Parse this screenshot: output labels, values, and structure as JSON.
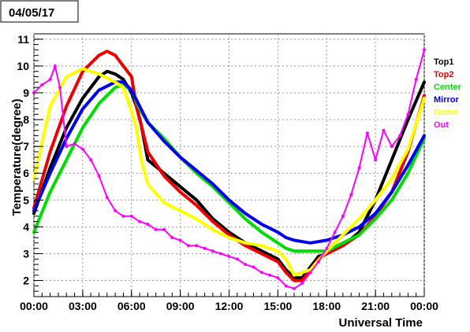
{
  "date_label": "04/05/17",
  "chart_data": {
    "type": "scatter",
    "title": "",
    "xlabel": "Universal Time",
    "ylabel": "Temperature(degree)",
    "xlim": [
      0,
      24
    ],
    "ylim": [
      1.4,
      11.2
    ],
    "x_ticks": [
      0,
      3,
      6,
      9,
      12,
      15,
      18,
      21,
      24
    ],
    "x_tick_labels": [
      "00:00",
      "03:00",
      "06:00",
      "09:00",
      "12:00",
      "15:00",
      "18:00",
      "21:00",
      "00:00"
    ],
    "y_ticks": [
      2,
      3,
      4,
      5,
      6,
      7,
      8,
      9,
      10,
      11
    ],
    "y_tick_labels": [
      "2",
      "3",
      "4",
      "5",
      "6",
      "7",
      "8",
      "9",
      "10",
      "11"
    ],
    "grid": true,
    "legend_position": "right",
    "series": [
      {
        "name": "Top1",
        "color": "#000000",
        "x": [
          0,
          1,
          2,
          3,
          4,
          4.5,
          5,
          5.5,
          6,
          6.3,
          6.6,
          7,
          8,
          9,
          10,
          11,
          12,
          13,
          14,
          15,
          15.5,
          16,
          16.5,
          17,
          17.5,
          18,
          19,
          20,
          21,
          22,
          23,
          24
        ],
        "y": [
          4.5,
          6.2,
          7.7,
          8.8,
          9.6,
          9.8,
          9.7,
          9.5,
          9.0,
          8.5,
          7.8,
          6.5,
          6.0,
          5.5,
          5.0,
          4.3,
          3.8,
          3.4,
          3.1,
          2.8,
          2.4,
          2.1,
          2.1,
          2.5,
          2.9,
          3.0,
          3.3,
          3.8,
          5.0,
          6.5,
          8.0,
          9.4
        ]
      },
      {
        "name": "Top2",
        "color": "#ee0000",
        "x": [
          0,
          1,
          2,
          3,
          4,
          4.5,
          5,
          5.5,
          6,
          6.3,
          6.6,
          7,
          8,
          9,
          10,
          11,
          12,
          13,
          14,
          15,
          15.5,
          16,
          16.5,
          17,
          17.5,
          18,
          19,
          20,
          21,
          22,
          23,
          24
        ],
        "y": [
          4.7,
          6.8,
          8.5,
          9.8,
          10.4,
          10.55,
          10.4,
          10.0,
          9.6,
          8.5,
          7.8,
          6.8,
          5.9,
          5.3,
          4.8,
          4.2,
          3.7,
          3.3,
          3.0,
          2.7,
          2.3,
          2.0,
          2.0,
          2.4,
          2.8,
          3.0,
          3.3,
          3.7,
          4.4,
          5.3,
          6.8,
          8.9
        ]
      },
      {
        "name": "Center",
        "color": "#00dd00",
        "x": [
          0,
          1,
          2,
          3,
          4,
          5,
          5.5,
          6,
          6.5,
          7,
          8,
          9,
          10,
          11,
          12,
          13,
          14,
          15,
          15.5,
          16,
          17,
          18,
          19,
          20,
          21,
          22,
          23,
          24
        ],
        "y": [
          3.8,
          5.3,
          6.5,
          7.7,
          8.6,
          9.2,
          9.3,
          9.1,
          8.4,
          7.9,
          7.3,
          6.6,
          6.0,
          5.5,
          4.9,
          4.3,
          3.8,
          3.4,
          3.2,
          3.1,
          3.1,
          3.1,
          3.4,
          3.7,
          4.3,
          5.0,
          6.0,
          7.3
        ]
      },
      {
        "name": "Mirror",
        "color": "#0000ee",
        "x": [
          0,
          1,
          2,
          3,
          4,
          5,
          5.5,
          6,
          6.5,
          7,
          8,
          9,
          10,
          11,
          12,
          13,
          14,
          15,
          15.5,
          16,
          17,
          18,
          19,
          20,
          21,
          22,
          23,
          24
        ],
        "y": [
          4.6,
          6.0,
          7.3,
          8.4,
          9.1,
          9.4,
          9.4,
          9.1,
          8.5,
          7.9,
          7.2,
          6.6,
          6.1,
          5.6,
          5.0,
          4.5,
          4.1,
          3.8,
          3.6,
          3.5,
          3.4,
          3.5,
          3.7,
          4.0,
          4.5,
          5.3,
          6.3,
          7.4
        ]
      },
      {
        "name": "Dome",
        "color": "#ffff00",
        "x": [
          0,
          1,
          2,
          3,
          4,
          5,
          5.5,
          6,
          6.3,
          6.6,
          7,
          8,
          9,
          10,
          11,
          12,
          13,
          14,
          15,
          15.5,
          16,
          17,
          18,
          19,
          20,
          21,
          22,
          23,
          24
        ],
        "y": [
          5.8,
          8.5,
          9.6,
          9.9,
          9.7,
          9.4,
          9.2,
          8.3,
          7.7,
          6.5,
          5.6,
          4.9,
          4.6,
          4.3,
          3.9,
          3.6,
          3.4,
          3.3,
          3.1,
          2.8,
          2.2,
          2.4,
          3.1,
          3.7,
          4.3,
          5.0,
          5.8,
          6.9,
          8.8
        ]
      },
      {
        "name": "Out",
        "color": "#ff00ff",
        "x": [
          0,
          0.5,
          1,
          1.3,
          1.6,
          2,
          2.5,
          3,
          3.5,
          4,
          4.5,
          5,
          5.5,
          6,
          6.5,
          7,
          7.5,
          8,
          8.5,
          9,
          9.5,
          10,
          10.5,
          11,
          11.5,
          12,
          12.5,
          13,
          13.5,
          14,
          14.5,
          15,
          15.5,
          16,
          16.5,
          17,
          17.5,
          18,
          18.5,
          19,
          19.5,
          20,
          20.5,
          21,
          21.5,
          22,
          22.5,
          23,
          23.5,
          24
        ],
        "y": [
          9.0,
          9.3,
          9.5,
          10.0,
          9.2,
          7.0,
          7.1,
          6.9,
          6.5,
          5.9,
          5.1,
          4.6,
          4.4,
          4.4,
          4.2,
          4.1,
          3.9,
          3.9,
          3.6,
          3.5,
          3.3,
          3.3,
          3.2,
          3.1,
          3.0,
          2.9,
          2.8,
          2.6,
          2.5,
          2.3,
          2.2,
          2.1,
          1.8,
          1.7,
          1.9,
          2.3,
          2.7,
          3.2,
          3.8,
          4.4,
          5.2,
          6.2,
          7.5,
          6.5,
          7.6,
          7.0,
          7.4,
          8.2,
          9.5,
          10.6
        ]
      }
    ]
  }
}
